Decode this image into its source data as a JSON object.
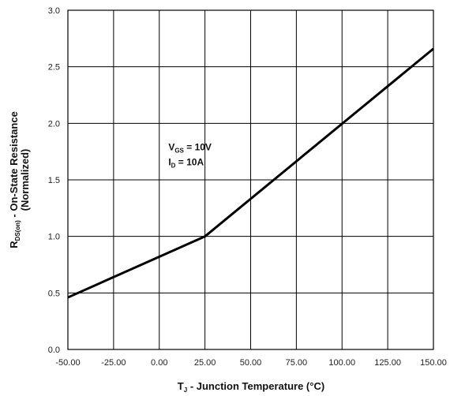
{
  "chart_data": {
    "type": "line",
    "title": "",
    "xlabel": {
      "main": "T",
      "sub": "J",
      "rest": " - Junction Temperature (°C)"
    },
    "ylabel": {
      "main": "R",
      "sub": "DS(on)",
      "rest": " - On-State Resistance",
      "line2": "(Normalized)"
    },
    "xlim": [
      -50,
      150
    ],
    "ylim": [
      0,
      3
    ],
    "x_ticks": [
      -50,
      -25,
      0,
      25,
      50,
      75,
      100,
      125,
      150
    ],
    "x_tick_labels": [
      "-50.00",
      "-25.00",
      "0.00",
      "25.00",
      "50.00",
      "75.00",
      "100.00",
      "125.00",
      "150.00"
    ],
    "y_ticks": [
      0,
      0.5,
      1,
      1.5,
      2,
      2.5,
      3
    ],
    "y_tick_labels": [
      "0.0",
      "0.5",
      "1.0",
      "1.5",
      "2.0",
      "2.5",
      "3.0"
    ],
    "grid": true,
    "series": [
      {
        "x": [
          -50,
          25,
          150
        ],
        "y": [
          0.46,
          1.0,
          2.66
        ],
        "color": "#000000"
      }
    ],
    "annotations": [
      {
        "main": "V",
        "sub": "GS",
        "rest": " = 10V",
        "x": 5,
        "y": 1.76
      },
      {
        "main": "I",
        "sub": "D",
        "rest": " = 10A",
        "x": 5,
        "y": 1.63
      }
    ]
  }
}
